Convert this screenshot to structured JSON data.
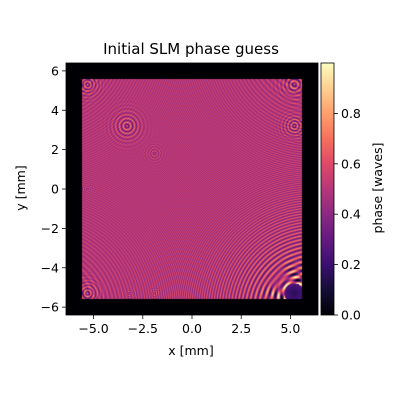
{
  "chart_data": {
    "type": "heatmap",
    "title": "Initial SLM phase guess",
    "xlabel": "x [mm]",
    "ylabel": "y [mm]",
    "xlim": [
      -6.4,
      6.4
    ],
    "ylim": [
      -6.4,
      6.4
    ],
    "xticks": [
      -5.0,
      -2.5,
      0.0,
      2.5,
      5.0
    ],
    "xtick_labels": [
      "−5.0",
      "−2.5",
      "0.0",
      "2.5",
      "5.0"
    ],
    "yticks": [
      -6,
      -4,
      -2,
      0,
      2,
      4,
      6
    ],
    "ytick_labels": [
      "−6",
      "−4",
      "−2",
      "0",
      "2",
      "4",
      "6"
    ],
    "active_region": {
      "xmin": -5.6,
      "xmax": 5.6,
      "ymin": -5.6,
      "ymax": 5.6
    },
    "border_value": 0.0,
    "background_phase": 0.5,
    "colormap": "magma",
    "colorbar": {
      "label": "phase [waves]",
      "range": [
        0.0,
        1.0
      ],
      "ticks": [
        0.0,
        0.2,
        0.4,
        0.6,
        0.8
      ],
      "tick_labels": [
        "0.0",
        "0.2",
        "0.4",
        "0.6",
        "0.8"
      ]
    },
    "grid": false,
    "ring_features": [
      {
        "x": 5.2,
        "y": -5.3,
        "r": 0.5,
        "strength": "strong"
      },
      {
        "x": 5.2,
        "y": 5.3,
        "r": 0.35,
        "strength": "medium"
      },
      {
        "x": -5.3,
        "y": 5.3,
        "r": 0.3,
        "strength": "medium"
      },
      {
        "x": -5.3,
        "y": -5.3,
        "r": 0.3,
        "strength": "medium"
      },
      {
        "x": -3.3,
        "y": 3.2,
        "r": 0.35,
        "strength": "medium"
      },
      {
        "x": 5.2,
        "y": 3.2,
        "r": 0.3,
        "strength": "medium"
      },
      {
        "x": -1.9,
        "y": 1.8,
        "r": 0.25,
        "strength": "weak"
      },
      {
        "x": -5.3,
        "y": 0.0,
        "r": 0.2,
        "strength": "weak"
      },
      {
        "x": -3.2,
        "y": -5.3,
        "r": 0.2,
        "strength": "weak"
      },
      {
        "x": -1.9,
        "y": -5.3,
        "r": 0.2,
        "strength": "weak"
      }
    ]
  }
}
